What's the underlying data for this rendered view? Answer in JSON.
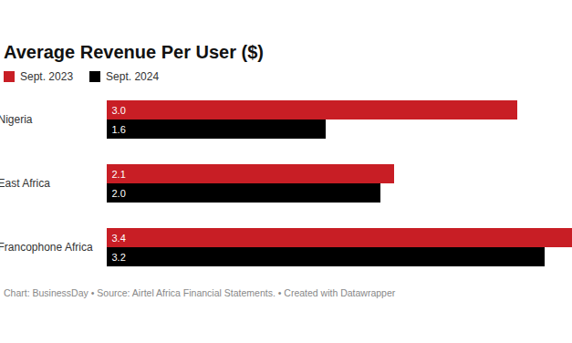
{
  "chart_data": {
    "type": "bar",
    "orientation": "horizontal",
    "title": "Average Revenue Per User ($)",
    "caption": "Chart: BusinessDay • Source: Airtel Africa Financial Statements. • Created with Datawrapper",
    "categories": [
      "Nigeria",
      "East Africa",
      "Francophone Africa"
    ],
    "series": [
      {
        "name": "Sept. 2023",
        "color": "#c81e25",
        "values": [
          3.0,
          2.1,
          3.4
        ],
        "value_labels": [
          "3.0",
          "2.1",
          "3.4"
        ]
      },
      {
        "name": "Sept. 2024",
        "color": "#000000",
        "values": [
          1.6,
          2.0,
          3.2
        ],
        "value_labels": [
          "1.6",
          "2.0",
          "3.2"
        ]
      }
    ],
    "xlim": [
      0,
      3.4
    ],
    "legend": "top-left",
    "data_labels": true,
    "tick_labels": "y",
    "grid": false
  }
}
